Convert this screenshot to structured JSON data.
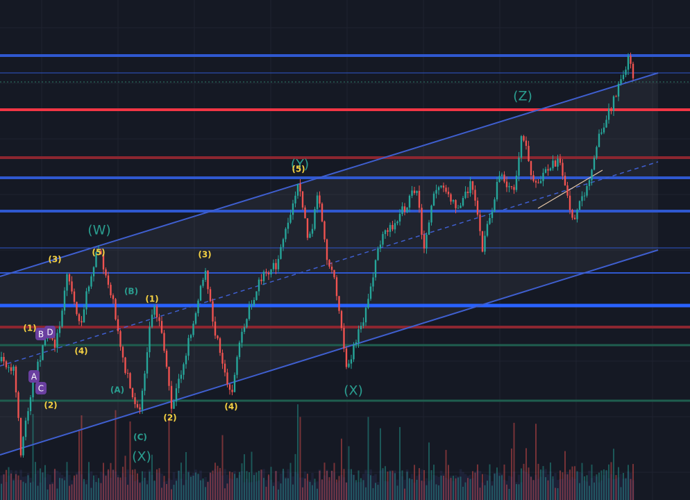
{
  "wave_labels": [
    "(Z)",
    "(Y)",
    "(W)",
    "(X)",
    "(X)",
    "(1)",
    "(2)",
    "(3)",
    "(4)",
    "(5)",
    "(1)",
    "(2)",
    "(3)",
    "(4)",
    "(5)",
    "(B)",
    "(A)",
    "(C)"
  ],
  "box_labels": [
    "A",
    "B",
    "C",
    "D"
  ]
}
